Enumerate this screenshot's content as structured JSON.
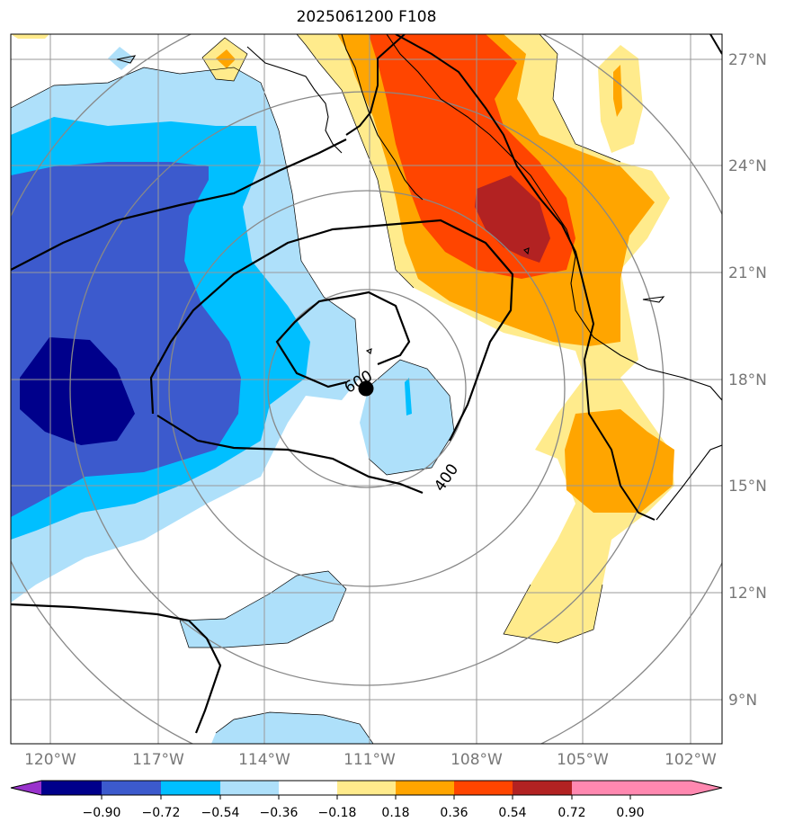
{
  "title": "2025061200 F108",
  "chart_data": {
    "type": "heatmap",
    "title": "2025061200 F108",
    "lon_range": [
      -121.5,
      -101.2
    ],
    "lat_range": [
      7.7,
      27.6
    ],
    "lon_ticks": [
      "120°W",
      "117°W",
      "114°W",
      "111°W",
      "108°W",
      "105°W",
      "102°W"
    ],
    "lat_ticks": [
      "27°N",
      "24°N",
      "21°N",
      "18°N",
      "15°N",
      "12°N",
      "9°N"
    ],
    "grid": true,
    "contour_labels": [
      "600",
      "400"
    ],
    "storm_center": {
      "lon": -111.0,
      "lat": 17.7
    },
    "colorbar": {
      "ticks": [
        "−0.90",
        "−0.72",
        "−0.54",
        "−0.36",
        "−0.18",
        "0.18",
        "0.36",
        "0.54",
        "0.72",
        "0.90"
      ],
      "colors": [
        "#9932cc",
        "#00008b",
        "#3c5acd",
        "#00bfff",
        "#aee0fa",
        "#ffffff",
        "#ffeb8c",
        "#ffa500",
        "#ff4500",
        "#b22222",
        "#ff88b0"
      ],
      "extend": "both"
    },
    "fill_colors": {
      "lvl_neg90": "#00008b",
      "lvl_neg72": "#3c5acd",
      "lvl_neg54": "#00bfff",
      "lvl_neg36": "#aee0fa",
      "lvl_36": "#ffeb8c",
      "lvl_54": "#ffa500",
      "lvl_72": "#ff4500",
      "lvl_90": "#b22222"
    }
  }
}
